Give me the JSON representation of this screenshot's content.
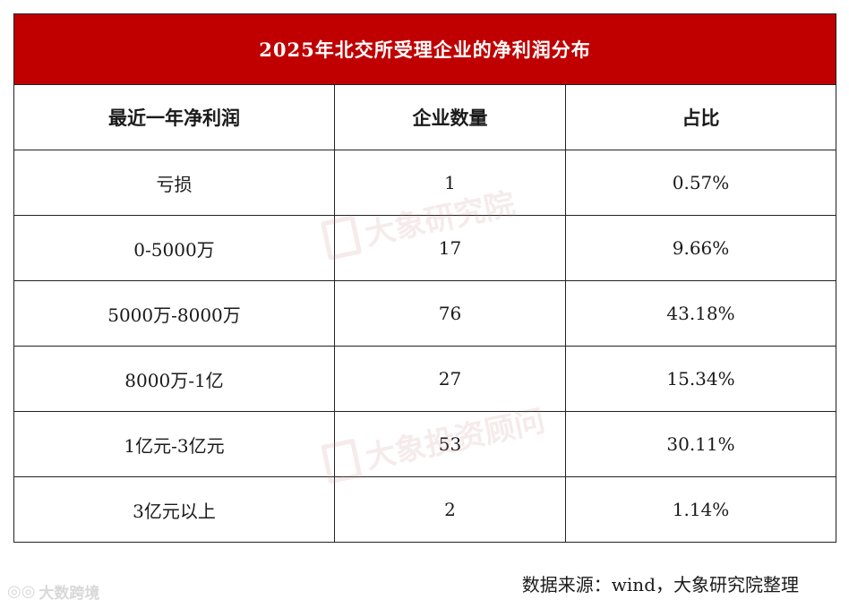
{
  "table": {
    "title": "2025年北交所受理企业的净利润分布",
    "headers": [
      "最近一年净利润",
      "企业数量",
      "占比"
    ],
    "rows": [
      [
        "亏损",
        "1",
        "0.57%"
      ],
      [
        "0-5000万",
        "17",
        "9.66%"
      ],
      [
        "5000万-8000万",
        "76",
        "43.18%"
      ],
      [
        "8000万-1亿",
        "27",
        "15.34%"
      ],
      [
        "1亿元-3亿元",
        "53",
        "30.11%"
      ],
      [
        "3亿元以上",
        "2",
        "1.14%"
      ]
    ]
  },
  "watermarks": [
    "大象研究院",
    "大象投资顾问"
  ],
  "source": "数据来源：wind，大象研究院整理",
  "corner_logo": {
    "icon": "camera-lens-icon",
    "text": "大数跨境"
  },
  "colors": {
    "title_bg": "#c00000",
    "title_text": "#ffffff",
    "border": "#222222"
  }
}
